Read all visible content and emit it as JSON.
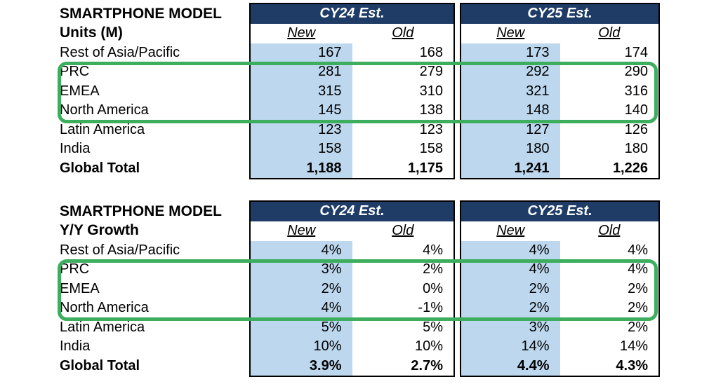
{
  "colors": {
    "header_bg": "#1F3C66",
    "header_text": "#ffffff",
    "new_column_bg": "#BDD8EE",
    "table_border": "#000000",
    "highlight_green": "#3CAE5E",
    "page_bg": "#ffffff"
  },
  "tables": [
    {
      "title_line1": "SMARTPHONE MODEL",
      "title_line2": "Units (M)",
      "column_groups": [
        {
          "label": "CY24 Est.",
          "sub_columns": [
            "New",
            "Old"
          ]
        },
        {
          "label": "CY25 Est.",
          "sub_columns": [
            "New",
            "Old"
          ]
        }
      ],
      "rows": [
        {
          "label": "Rest of Asia/Pacific",
          "values": [
            "167",
            "168",
            "173",
            "174"
          ],
          "bold": false
        },
        {
          "label": "PRC",
          "values": [
            "281",
            "279",
            "292",
            "290"
          ],
          "bold": false
        },
        {
          "label": "EMEA",
          "values": [
            "315",
            "310",
            "321",
            "316"
          ],
          "bold": false
        },
        {
          "label": "North America",
          "values": [
            "145",
            "138",
            "148",
            "140"
          ],
          "bold": false
        },
        {
          "label": "Latin America",
          "values": [
            "123",
            "123",
            "127",
            "126"
          ],
          "bold": false
        },
        {
          "label": "India",
          "values": [
            "158",
            "158",
            "180",
            "180"
          ],
          "bold": false
        },
        {
          "label": "Global Total",
          "values": [
            "1,188",
            "1,175",
            "1,241",
            "1,226"
          ],
          "bold": true
        }
      ]
    },
    {
      "title_line1": "SMARTPHONE MODEL",
      "title_line2": "Y/Y Growth",
      "column_groups": [
        {
          "label": "CY24 Est.",
          "sub_columns": [
            "New",
            "Old"
          ]
        },
        {
          "label": "CY25 Est.",
          "sub_columns": [
            "New",
            "Old"
          ]
        }
      ],
      "rows": [
        {
          "label": "Rest of Asia/Pacific",
          "values": [
            "4%",
            "4%",
            "4%",
            "4%"
          ],
          "bold": false
        },
        {
          "label": "PRC",
          "values": [
            "3%",
            "2%",
            "4%",
            "4%"
          ],
          "bold": false
        },
        {
          "label": "EMEA",
          "values": [
            "2%",
            "0%",
            "2%",
            "2%"
          ],
          "bold": false
        },
        {
          "label": "North America",
          "values": [
            "4%",
            "-1%",
            "2%",
            "2%"
          ],
          "bold": false
        },
        {
          "label": "Latin America",
          "values": [
            "5%",
            "5%",
            "3%",
            "2%"
          ],
          "bold": false
        },
        {
          "label": "India",
          "values": [
            "10%",
            "10%",
            "14%",
            "14%"
          ],
          "bold": false
        },
        {
          "label": "Global Total",
          "values": [
            "3.9%",
            "2.7%",
            "4.4%",
            "4.3%"
          ],
          "bold": true
        }
      ]
    }
  ],
  "annotations": {
    "highlighted_rows": [
      "PRC",
      "EMEA",
      "North America"
    ],
    "highlight_color": "#3CAE5E",
    "region_count": 2
  }
}
